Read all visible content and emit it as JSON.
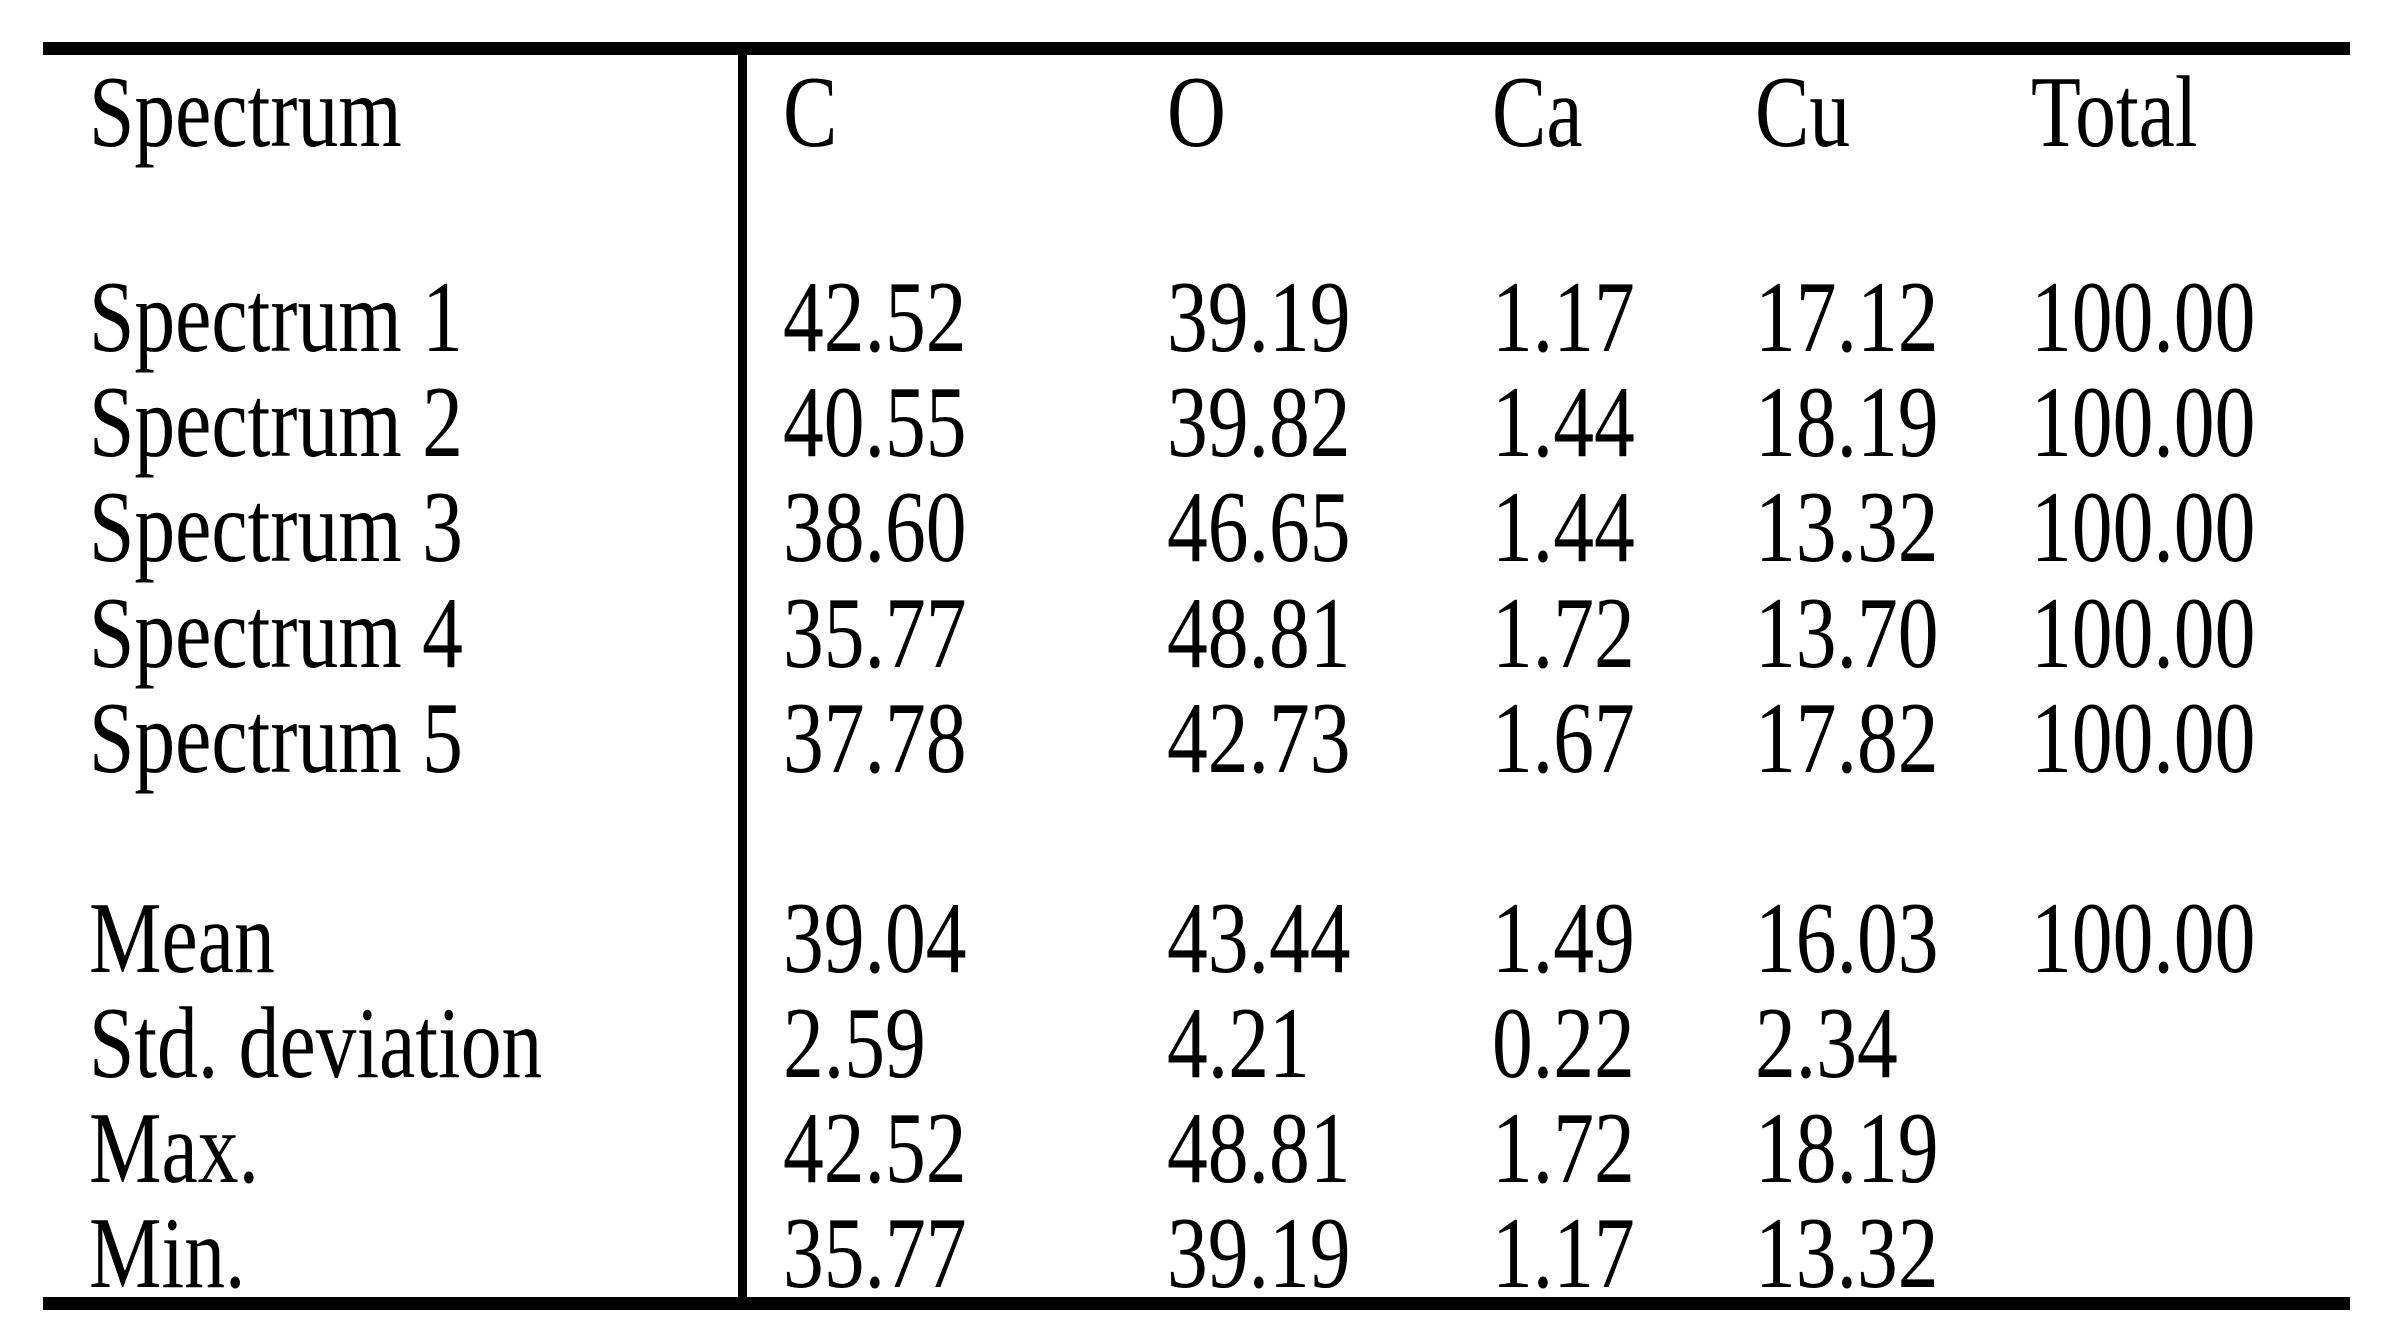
{
  "colors": {
    "text": "#000000",
    "background": "#ffffff",
    "rule": "#000000"
  },
  "table": {
    "header": {
      "label": "Spectrum",
      "columns": [
        "C",
        "O",
        "Ca",
        "Cu",
        "Total"
      ]
    },
    "rows": [
      {
        "label": "Spectrum 1",
        "values": [
          "42.52",
          "39.19",
          "1.17",
          "17.12",
          "100.00"
        ]
      },
      {
        "label": "Spectrum 2",
        "values": [
          "40.55",
          "39.82",
          "1.44",
          "18.19",
          "100.00"
        ]
      },
      {
        "label": "Spectrum 3",
        "values": [
          "38.60",
          "46.65",
          "1.44",
          "13.32",
          "100.00"
        ]
      },
      {
        "label": "Spectrum 4",
        "values": [
          "35.77",
          "48.81",
          "1.72",
          "13.70",
          "100.00"
        ]
      },
      {
        "label": "Spectrum 5",
        "values": [
          "37.78",
          "42.73",
          "1.67",
          "17.82",
          "100.00"
        ]
      }
    ],
    "stats": [
      {
        "label": "Mean",
        "values": [
          "39.04",
          "43.44",
          "1.49",
          "16.03",
          "100.00"
        ]
      },
      {
        "label": "Std. deviation",
        "values": [
          "2.59",
          "4.21",
          "0.22",
          "2.34",
          ""
        ]
      },
      {
        "label": "Max.",
        "values": [
          "42.52",
          "48.81",
          "1.72",
          "18.19",
          ""
        ]
      },
      {
        "label": "Min.",
        "values": [
          "35.77",
          "39.19",
          "1.17",
          "13.32",
          ""
        ]
      }
    ]
  },
  "chart_data": {
    "type": "table",
    "columns": [
      "Spectrum",
      "C",
      "O",
      "Ca",
      "Cu",
      "Total"
    ],
    "rows": [
      [
        "Spectrum 1",
        42.52,
        39.19,
        1.17,
        17.12,
        100.0
      ],
      [
        "Spectrum 2",
        40.55,
        39.82,
        1.44,
        18.19,
        100.0
      ],
      [
        "Spectrum 3",
        38.6,
        46.65,
        1.44,
        13.32,
        100.0
      ],
      [
        "Spectrum 4",
        35.77,
        48.81,
        1.72,
        13.7,
        100.0
      ],
      [
        "Spectrum 5",
        37.78,
        42.73,
        1.67,
        17.82,
        100.0
      ],
      [
        "Mean",
        39.04,
        43.44,
        1.49,
        16.03,
        100.0
      ],
      [
        "Std. deviation",
        2.59,
        4.21,
        0.22,
        2.34,
        null
      ],
      [
        "Max.",
        42.52,
        48.81,
        1.72,
        18.19,
        null
      ],
      [
        "Min.",
        35.77,
        39.19,
        1.17,
        13.32,
        null
      ]
    ],
    "title": "",
    "notes": "EDS spectrum quantification table; blank spacer rows after header and after Spectrum 5; single vertical rule after first column; thick horizontal rules top and bottom"
  }
}
